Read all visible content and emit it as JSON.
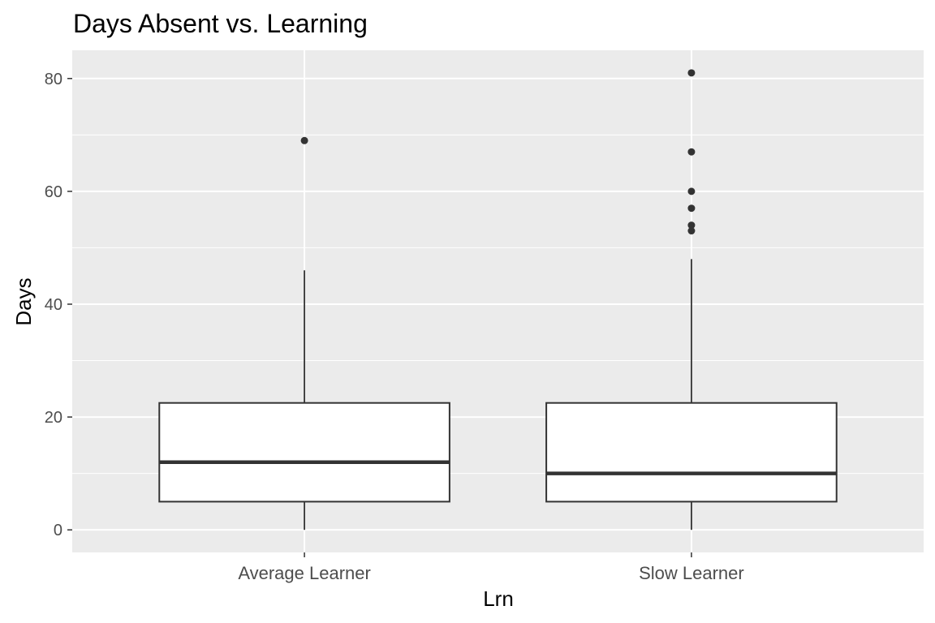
{
  "chart_data": {
    "type": "boxplot",
    "title": "Days Absent vs. Learning",
    "xlabel": "Lrn",
    "ylabel": "Days",
    "categories": [
      "Average Learner",
      "Slow Learner"
    ],
    "ylim": [
      -4,
      85
    ],
    "yticks": [
      0,
      20,
      40,
      60,
      80
    ],
    "grid": true,
    "boxes": [
      {
        "category": "Average Learner",
        "whisker_low": 0,
        "q1": 5,
        "median": 12,
        "q3": 22.5,
        "whisker_high": 46,
        "outliers": [
          69
        ]
      },
      {
        "category": "Slow Learner",
        "whisker_low": 0,
        "q1": 5,
        "median": 10,
        "q3": 22.5,
        "whisker_high": 48,
        "outliers": [
          53,
          54,
          57,
          60,
          67,
          81
        ]
      }
    ],
    "colors": {
      "panel_bg": "#ebebeb",
      "grid": "#ffffff",
      "box_fill": "#ffffff",
      "box_stroke": "#333333",
      "point": "#333333"
    }
  }
}
